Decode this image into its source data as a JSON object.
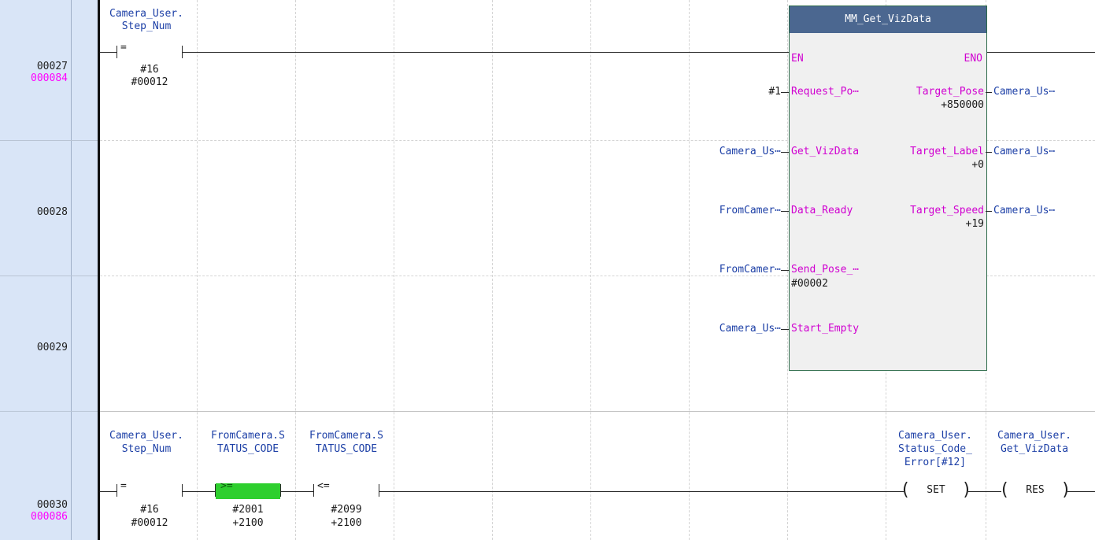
{
  "rungs": [
    {
      "step": "00027",
      "addr": "000084"
    },
    {
      "step": "00028",
      "addr": ""
    },
    {
      "step": "00029",
      "addr": ""
    },
    {
      "step": "00030",
      "addr": "000086"
    }
  ],
  "rung27": {
    "contact_var_line1": "Camera_User.",
    "contact_var_line2": "Step_Num",
    "contact_op": "=",
    "contact_val1": "#16",
    "contact_val2": "#00012"
  },
  "fb": {
    "title": "MM_Get_VizData",
    "en": "EN",
    "eno": "ENO",
    "inputs": [
      {
        "ext": "#1",
        "pin": "Request_Po⋯",
        "below": ""
      },
      {
        "ext": "Camera_Us⋯",
        "pin": "Get_VizData",
        "below": ""
      },
      {
        "ext": "FromCamer⋯",
        "pin": "Data_Ready",
        "below": ""
      },
      {
        "ext": "FromCamer⋯",
        "pin": "Send_Pose_⋯",
        "below": "#00002"
      },
      {
        "ext": "Camera_Us⋯",
        "pin": "Start_Empty",
        "below": ""
      }
    ],
    "outputs": [
      {
        "pin": "Target_Pose",
        "value": "+850000",
        "ext": "Camera_Us⋯"
      },
      {
        "pin": "Target_Label",
        "value": "+0",
        "ext": "Camera_Us⋯"
      },
      {
        "pin": "Target_Speed",
        "value": "+19",
        "ext": "Camera_Us⋯"
      }
    ]
  },
  "rung30": {
    "c1": {
      "l1": "Camera_User.",
      "l2": "Step_Num",
      "op": "=",
      "v1": "#16",
      "v2": "#00012"
    },
    "c2": {
      "l1": "FromCamera.S",
      "l2": "TATUS_CODE",
      "op": ">=",
      "v1": "#2001",
      "v2": "+2100"
    },
    "c3": {
      "l1": "FromCamera.S",
      "l2": "TATUS_CODE",
      "op": "<=",
      "v1": "#2099",
      "v2": "+2100"
    },
    "coil1": {
      "l1": "Camera_User.",
      "l2": "Status_Code_",
      "l3": "Error[#12]",
      "label": "SET"
    },
    "coil2": {
      "l1": "Camera_User.",
      "l2": "Get_VizData",
      "label": "RES"
    }
  },
  "colors": {
    "active_contact": "#2ecf2e",
    "step_addr": "#ff00ff",
    "variable": "#1c3fa6",
    "fb_header": "#4b6790"
  }
}
